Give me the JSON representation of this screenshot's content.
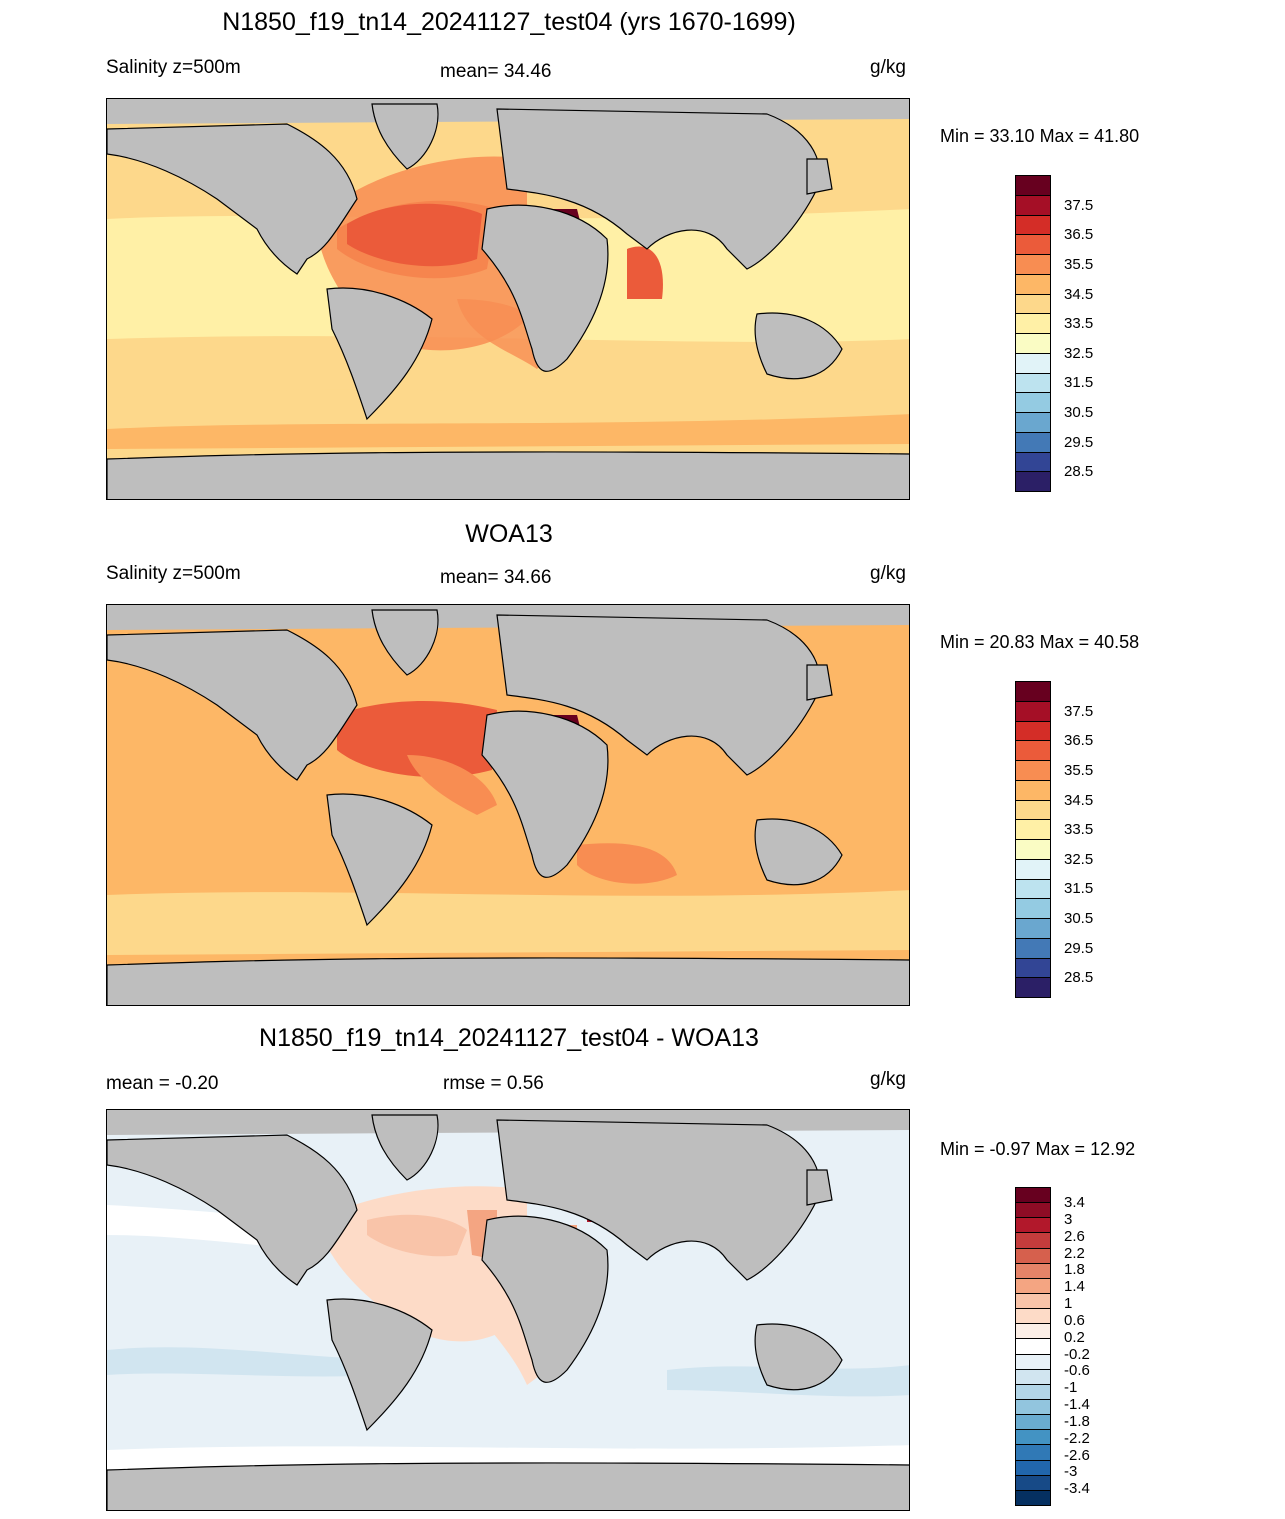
{
  "panels": [
    {
      "title": "N1850_f19_tn14_20241127_test04 (yrs 1670-1699)",
      "left_label": "Salinity z=500m",
      "center_label": "mean=  34.46",
      "units": "g/kg",
      "minmax": "Min =  33.10 Max =  41.80",
      "colorbar_labels": [
        "37.5",
        "36.5",
        "35.5",
        "34.5",
        "33.5",
        "32.5",
        "31.5",
        "30.5",
        "29.5",
        "28.5"
      ],
      "colorbar_colors": [
        "#67001f",
        "#a50f26",
        "#d42d27",
        "#eb5b3a",
        "#f88d52",
        "#fdb766",
        "#fdd88b",
        "#fff0a6",
        "#fafcc4",
        "#e1f3f8",
        "#bde3ef",
        "#94cbe2",
        "#6aa7cf",
        "#4379b6",
        "#324595",
        "#2b1f66"
      ]
    },
    {
      "title": "WOA13",
      "left_label": "Salinity z=500m",
      "center_label": "mean=  34.66",
      "units": "g/kg",
      "minmax": "Min =  20.83 Max =  40.58",
      "colorbar_labels": [
        "37.5",
        "36.5",
        "35.5",
        "34.5",
        "33.5",
        "32.5",
        "31.5",
        "30.5",
        "29.5",
        "28.5"
      ],
      "colorbar_colors": [
        "#67001f",
        "#a50f26",
        "#d42d27",
        "#eb5b3a",
        "#f88d52",
        "#fdb766",
        "#fdd88b",
        "#fff0a6",
        "#fafcc4",
        "#e1f3f8",
        "#bde3ef",
        "#94cbe2",
        "#6aa7cf",
        "#4379b6",
        "#324595",
        "#2b1f66"
      ]
    },
    {
      "title": "N1850_f19_tn14_20241127_test04 - WOA13",
      "left_label": "mean =  -0.20",
      "center_label": "rmse =   0.56",
      "units": "g/kg",
      "minmax": "Min =  -0.97 Max =  12.92",
      "colorbar_labels": [
        "3.4",
        "3",
        "2.6",
        "2.2",
        "1.8",
        "1.4",
        "1",
        "0.6",
        "0.2",
        "-0.2",
        "-0.6",
        "-1",
        "-1.4",
        "-1.8",
        "-2.2",
        "-2.6",
        "-3",
        "-3.4"
      ],
      "colorbar_colors": [
        "#67001f",
        "#8e0c25",
        "#b2182b",
        "#c43c3c",
        "#d6604d",
        "#e58368",
        "#f4a582",
        "#f9c4a9",
        "#fddbc7",
        "#fbeee6",
        "#ffffff",
        "#e8f1f7",
        "#d1e5f0",
        "#b2d5e7",
        "#92c5de",
        "#6aacd0",
        "#4393c3",
        "#3079b6",
        "#2166ac",
        "#174a87",
        "#053061"
      ]
    }
  ],
  "colors": {
    "land": "#bebebe",
    "coast": "#000000"
  }
}
